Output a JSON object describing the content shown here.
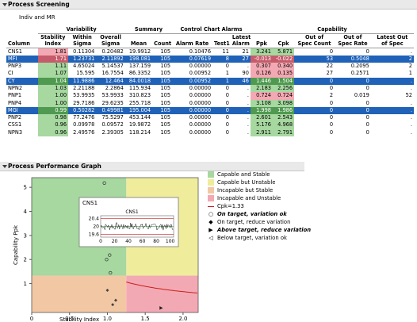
{
  "screening": {
    "title": "Process Screening",
    "subtitle": "Indiv and MR",
    "groups": {
      "variability": "Variability",
      "summary": "Summary",
      "alarms": "Control Chart Alarms",
      "capability": "Capability"
    },
    "headers": {
      "column": "Column",
      "stability": [
        "Stability",
        "Index"
      ],
      "within": [
        "Within",
        "Sigma"
      ],
      "overall": [
        "Overall",
        "Sigma"
      ],
      "mean": "Mean",
      "count": "Count",
      "alarm_rate": "Alarm Rate",
      "test1": "Test1",
      "latest": [
        "Latest",
        "Alarm"
      ],
      "ppk": "Ppk",
      "cpk": "Cpk",
      "oos_count": [
        "Out of",
        "Spec Count"
      ],
      "oos_rate": [
        "Out of",
        "Spec Rate"
      ],
      "latest_oos": [
        "Latest Out",
        "of Spec"
      ]
    },
    "rows": [
      {
        "col": "CNS1",
        "stab": "1.81",
        "within": "0.11304",
        "overall": "0.20482",
        "mean": "19.9912",
        "count": "105",
        "alarm_rate": "0.10476",
        "test1": "11",
        "latest": "21",
        "ppk": "3.241",
        "cpk": "5.871",
        "oos_count": "0",
        "oos_rate": "0",
        "latest_oos": ".",
        "sel": false,
        "stab_c": "red",
        "ppk_c": "green",
        "cpk_c": "green"
      },
      {
        "col": "MFI",
        "stab": "1.71",
        "within": "1.23731",
        "overall": "2.11892",
        "mean": "198.081",
        "count": "105",
        "alarm_rate": "0.07619",
        "test1": "8",
        "latest": "27",
        "ppk": "-0.013",
        "cpk": "-0.022",
        "oos_count": "53",
        "oos_rate": "0.5048",
        "latest_oos": "2",
        "sel": true,
        "stab_c": "red",
        "ppk_c": "red",
        "cpk_c": "red"
      },
      {
        "col": "PNP3",
        "stab": "1.11",
        "within": "4.65024",
        "overall": "5.14537",
        "mean": "137.159",
        "count": "105",
        "alarm_rate": "0.00000",
        "test1": "0",
        "latest": ".",
        "ppk": "0.307",
        "cpk": "0.340",
        "oos_count": "22",
        "oos_rate": "0.2095",
        "latest_oos": "2",
        "sel": false,
        "stab_c": "green",
        "ppk_c": "red",
        "cpk_c": "red"
      },
      {
        "col": "CI",
        "stab": "1.07",
        "within": "15.595",
        "overall": "16.7554",
        "mean": "86.3352",
        "count": "105",
        "alarm_rate": "0.00952",
        "test1": "1",
        "latest": "90",
        "ppk": "0.126",
        "cpk": "0.135",
        "oos_count": "27",
        "oos_rate": "0.2571",
        "latest_oos": "1",
        "sel": false,
        "stab_c": "green",
        "ppk_c": "red",
        "cpk_c": "red"
      },
      {
        "col": "CY",
        "stab": "1.04",
        "within": "11.9886",
        "overall": "12.464",
        "mean": "84.0018",
        "count": "105",
        "alarm_rate": "0.00952",
        "test1": "1",
        "latest": "46",
        "ppk": "1.446",
        "cpk": "1.504",
        "oos_count": "0",
        "oos_rate": "0",
        "latest_oos": ".",
        "sel": true,
        "stab_c": "green",
        "ppk_c": "green",
        "cpk_c": "green"
      },
      {
        "col": "NPN2",
        "stab": "1.03",
        "within": "2.21188",
        "overall": "2.2864",
        "mean": "115.934",
        "count": "105",
        "alarm_rate": "0.00000",
        "test1": "0",
        "latest": ".",
        "ppk": "2.183",
        "cpk": "2.256",
        "oos_count": "0",
        "oos_rate": "0",
        "latest_oos": ".",
        "sel": false,
        "stab_c": "green",
        "ppk_c": "green",
        "cpk_c": "green"
      },
      {
        "col": "PNP1",
        "stab": "1.00",
        "within": "53.9935",
        "overall": "53.9933",
        "mean": "310.823",
        "count": "105",
        "alarm_rate": "0.00000",
        "test1": "0",
        "latest": ".",
        "ppk": "0.724",
        "cpk": "0.724",
        "oos_count": "2",
        "oos_rate": "0.019",
        "latest_oos": "52",
        "sel": false,
        "stab_c": "green",
        "ppk_c": "red",
        "cpk_c": "red"
      },
      {
        "col": "PNP4",
        "stab": "1.00",
        "within": "29.7186",
        "overall": "29.6235",
        "mean": "255.718",
        "count": "105",
        "alarm_rate": "0.00000",
        "test1": "0",
        "latest": ".",
        "ppk": "3.108",
        "cpk": "3.098",
        "oos_count": "0",
        "oos_rate": "0",
        "latest_oos": ".",
        "sel": false,
        "stab_c": "green",
        "ppk_c": "green",
        "cpk_c": "green"
      },
      {
        "col": "MGI",
        "stab": "0.99",
        "within": "0.50282",
        "overall": "0.49981",
        "mean": "195.004",
        "count": "105",
        "alarm_rate": "0.00000",
        "test1": "0",
        "latest": ".",
        "ppk": "1.998",
        "cpk": "1.986",
        "oos_count": "0",
        "oos_rate": "0",
        "latest_oos": ".",
        "sel": true,
        "stab_c": "green",
        "ppk_c": "green",
        "cpk_c": "green"
      },
      {
        "col": "PNP2",
        "stab": "0.98",
        "within": "77.2476",
        "overall": "75.5297",
        "mean": "453.144",
        "count": "105",
        "alarm_rate": "0.00000",
        "test1": "0",
        "latest": ".",
        "ppk": "2.601",
        "cpk": "2.543",
        "oos_count": "0",
        "oos_rate": "0",
        "latest_oos": ".",
        "sel": false,
        "stab_c": "green",
        "ppk_c": "green",
        "cpk_c": "green"
      },
      {
        "col": "CSS1",
        "stab": "0.96",
        "within": "0.09978",
        "overall": "0.09572",
        "mean": "19.9872",
        "count": "105",
        "alarm_rate": "0.00000",
        "test1": "0",
        "latest": ".",
        "ppk": "5.176",
        "cpk": "4.968",
        "oos_count": "0",
        "oos_rate": "0",
        "latest_oos": ".",
        "sel": false,
        "stab_c": "green",
        "ppk_c": "green",
        "cpk_c": "green"
      },
      {
        "col": "NPN3",
        "stab": "0.96",
        "within": "2.49576",
        "overall": "2.39305",
        "mean": "118.214",
        "count": "105",
        "alarm_rate": "0.00000",
        "test1": "0",
        "latest": ".",
        "ppk": "2.911",
        "cpk": "2.791",
        "oos_count": "0",
        "oos_rate": "0",
        "latest_oos": ".",
        "sel": false,
        "stab_c": "green",
        "ppk_c": "green",
        "cpk_c": "green"
      }
    ]
  },
  "graph": {
    "title": "Process Performance Graph",
    "ylabel": "Capability Ppk",
    "xlabel": "Stability Index",
    "x_ticks": [
      "0",
      "0.5",
      "1.0",
      "1.5",
      "2.0"
    ],
    "y_ticks": [
      "1",
      "2",
      "3",
      "4",
      "5"
    ],
    "x_ticks_v": [
      0,
      0.5,
      1.0,
      1.5,
      2.0
    ],
    "y_ticks_v": [
      1,
      2,
      3,
      4,
      5
    ],
    "xlim": [
      0,
      2.2
    ],
    "ylim": [
      -0.2,
      5.4
    ],
    "colors": {
      "capable_stable": "#a6d8a0",
      "capable_unstable": "#efec9c",
      "incapable_stable": "#f2c8a4",
      "incapable_unstable": "#f3a9b3"
    },
    "points": [
      {
        "x": 1.11,
        "y": 0.307,
        "marker": "diamond"
      },
      {
        "x": 1.07,
        "y": 0.126,
        "marker": "diamond"
      },
      {
        "x": 1.0,
        "y": 0.724,
        "marker": "diamond"
      },
      {
        "x": 1.04,
        "y": 1.446,
        "marker": "circle"
      },
      {
        "x": 1.03,
        "y": 2.183,
        "marker": "circle"
      },
      {
        "x": 1.0,
        "y": 3.108,
        "marker": "circle"
      },
      {
        "x": 0.99,
        "y": 1.998,
        "marker": "circle"
      },
      {
        "x": 0.98,
        "y": 2.601,
        "marker": "circle"
      },
      {
        "x": 0.96,
        "y": 5.176,
        "marker": "circle"
      },
      {
        "x": 0.96,
        "y": 2.911,
        "marker": "circle"
      },
      {
        "x": 1.81,
        "y": 3.241,
        "marker": "circle"
      },
      {
        "x": 1.71,
        "y": -0.013,
        "marker": "triangle"
      }
    ],
    "legend": [
      {
        "label": "Capable and Stable",
        "type": "swatch",
        "color": "#a6d8a0"
      },
      {
        "label": "Capable but Unstable",
        "type": "swatch",
        "color": "#efec9c"
      },
      {
        "label": "Incapable but Stable",
        "type": "swatch",
        "color": "#f2c8a4"
      },
      {
        "label": "Incapable and Unstable",
        "type": "swatch",
        "color": "#f3a9b3"
      },
      {
        "label": "Cpk=1.33",
        "type": "line",
        "color": "#c81e1e"
      },
      {
        "label": "On target, variation ok",
        "type": "marker",
        "glyph": "○",
        "style": "bi"
      },
      {
        "label": "On target, reduce variation",
        "type": "marker",
        "glyph": "◆",
        "style": ""
      },
      {
        "label": "Above target, reduce variation",
        "type": "marker",
        "glyph": "▶",
        "style": "bi"
      },
      {
        "label": "Below target, variation ok",
        "type": "marker",
        "glyph": "◁",
        "style": ""
      }
    ],
    "inset": {
      "title": "CNS1",
      "chart_title": "CNS1",
      "y_ticks": [
        "20.4",
        "20",
        "19.6"
      ],
      "x_ticks": [
        "0",
        "20",
        "40",
        "60",
        "80",
        "100"
      ]
    }
  },
  "chart_data": {
    "type": "scatter",
    "title": "Process Performance Graph",
    "xlabel": "Stability Index",
    "ylabel": "Capability Ppk",
    "xlim": [
      0,
      2.2
    ],
    "ylim": [
      -0.2,
      5.4
    ],
    "x": [
      1.81,
      1.71,
      1.11,
      1.07,
      1.04,
      1.03,
      1.0,
      1.0,
      0.99,
      0.98,
      0.96,
      0.96
    ],
    "y": [
      3.241,
      -0.013,
      0.307,
      0.126,
      1.446,
      2.183,
      0.724,
      3.108,
      1.998,
      2.601,
      5.176,
      2.911
    ]
  }
}
